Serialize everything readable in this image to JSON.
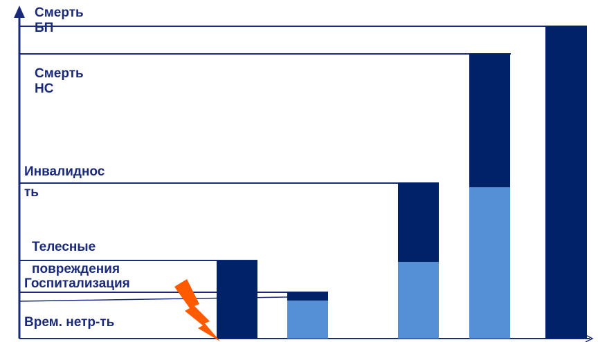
{
  "labels": {
    "death_occupational": "Смерть\nБП",
    "death_accident": "Смерть\nНС",
    "disability": "Инвалиднос\nть",
    "injuries": "Телесные\nповреждения",
    "hospitalization": "Госпитализация",
    "temp_disability": "Врем. нетр-ть"
  },
  "colors": {
    "dark_bar": "#002266",
    "light_bar": "#5590d6",
    "line": "#1a2a7a",
    "lightning": "#ff5a00"
  },
  "icons": {
    "lightning": "lightning-icon",
    "y_axis_arrow": "arrow-up-icon",
    "x_axis_arrow": "arrow-right-icon"
  }
}
